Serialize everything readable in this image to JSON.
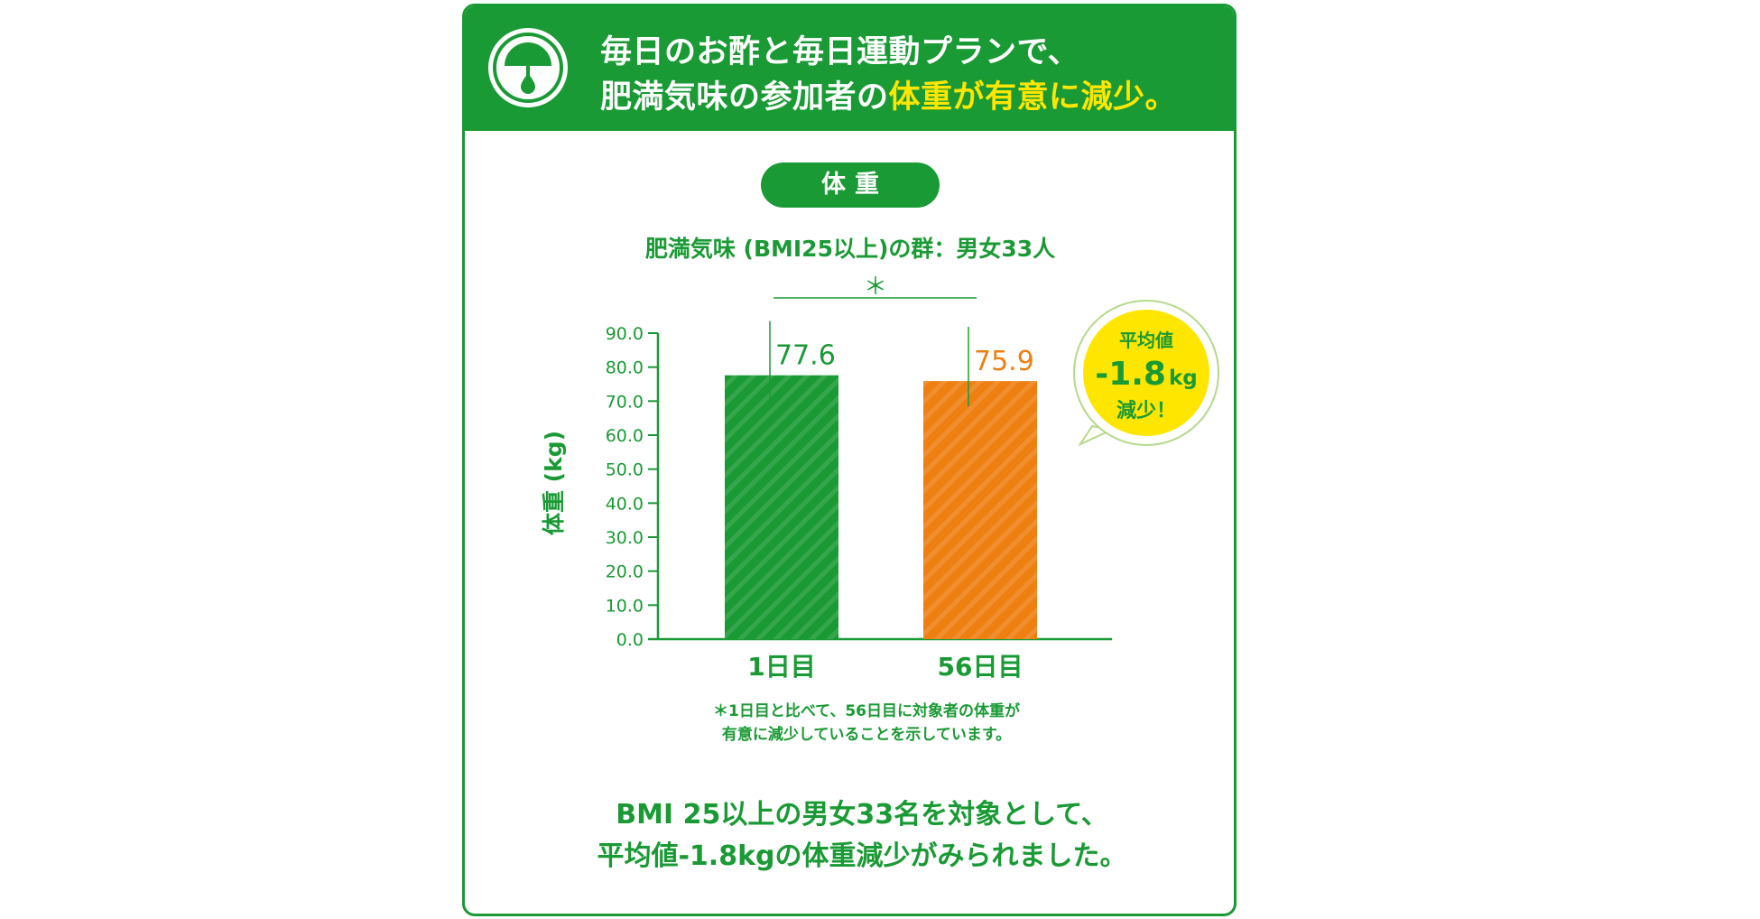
{
  "header": {
    "line1": "毎日のお酢と毎日運動プランで、",
    "line2_prefix": "肥満気味の参加者の",
    "line2_highlight": "体重が有意に減少。"
  },
  "colors": {
    "green": "#1a9a34",
    "orange": "#ee8012",
    "yellow": "#ffe600",
    "white": "#ffffff"
  },
  "icons": {
    "header": "gauge-drop-icon"
  },
  "pill_label": "体重",
  "group_label": "肥満気味 (BMI25以上)の群：男女33人",
  "chart_data": {
    "type": "bar",
    "categories": [
      "1日目",
      "56日目"
    ],
    "values": [
      77.6,
      75.9
    ],
    "value_labels": [
      "77.6",
      "75.9"
    ],
    "ylabel": "体重 (kg)",
    "ylim": [
      0,
      90
    ],
    "yticks": [
      "0.0",
      "10.0",
      "20.0",
      "30.0",
      "40.0",
      "50.0",
      "60.0",
      "70.0",
      "80.0",
      "90.0"
    ],
    "bar_colors": [
      "#1a9a34",
      "#ee8012"
    ],
    "significance_marker": "＊",
    "grid": false
  },
  "callout": {
    "line1": "平均値",
    "value": "-1.8",
    "unit": "kg",
    "line3": "減少！"
  },
  "footnote": {
    "line1": "＊1日目と比べて、56日目に対象者の体重が",
    "line2": "有意に減少していることを示しています。"
  },
  "summary": {
    "line1": "BMI 25以上の男女33名を対象として、",
    "line2": "平均値-1.8kgの体重減少がみられました。"
  }
}
